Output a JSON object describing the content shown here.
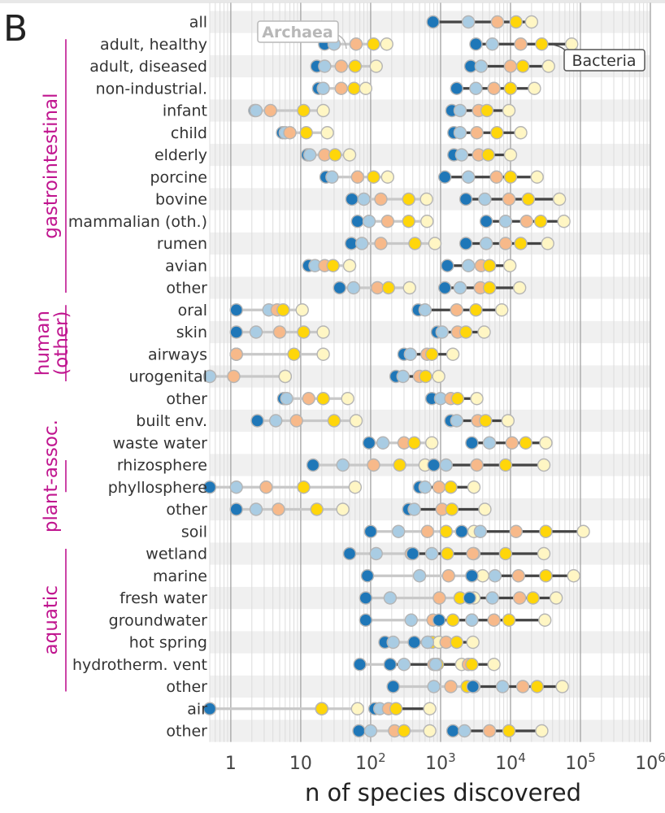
{
  "chart_data": {
    "type": "dot-range",
    "panel_letter": "B",
    "xlabel": "n of species discovered",
    "xscale": "log",
    "xlim": [
      0.5,
      1000000
    ],
    "xticks": [
      {
        "value": 1,
        "base": "1",
        "exp": ""
      },
      {
        "value": 10,
        "base": "10",
        "exp": ""
      },
      {
        "value": 100,
        "base": "10",
        "exp": "2"
      },
      {
        "value": 1000,
        "base": "10",
        "exp": "3"
      },
      {
        "value": 10000,
        "base": "10",
        "exp": "4"
      },
      {
        "value": 100000,
        "base": "10",
        "exp": "5"
      },
      {
        "value": 1000000,
        "base": "10",
        "exp": "6"
      }
    ],
    "annotations": {
      "archaea": "Archaea",
      "bacteria": "Bacteria"
    },
    "point_colors": [
      "#1f77b8",
      "#a9cce3",
      "#f7b98a",
      "#ffd60a",
      "#fff6c4"
    ],
    "series_colors": {
      "Archaea": "#c8c8c8",
      "Bacteria": "#444444"
    },
    "groups": [
      {
        "label": "gastrointestinal",
        "first_row": 1,
        "last_row": 12
      },
      {
        "label": "human (other)",
        "first_row": 13,
        "last_row": 16
      },
      {
        "label": "plant-assoc.",
        "first_row": 20,
        "last_row": 21
      },
      {
        "label": "aquatic",
        "first_row": 24,
        "last_row": 30
      }
    ],
    "rows": [
      {
        "label": "all",
        "archaea": [],
        "bacteria": [
          780,
          2500,
          6500,
          12000,
          20000
        ]
      },
      {
        "label": "adult, healthy",
        "archaea": [
          22,
          30,
          62,
          110,
          170
        ],
        "bacteria": [
          3200,
          5500,
          14000,
          28000,
          75000
        ]
      },
      {
        "label": "adult, diseased",
        "archaea": [
          17,
          22,
          38,
          60,
          120
        ],
        "bacteria": [
          2700,
          3800,
          10000,
          15000,
          35000
        ]
      },
      {
        "label": "non-industrial.",
        "archaea": [
          18,
          21,
          38,
          58,
          85
        ],
        "bacteria": [
          1700,
          3200,
          5800,
          10000,
          22000
        ]
      },
      {
        "label": "infant",
        "archaea": [
          2.2,
          2.3,
          3.7,
          11,
          21
        ],
        "bacteria": [
          1450,
          1900,
          3500,
          4600,
          9500
        ]
      },
      {
        "label": "child",
        "archaea": [
          5.5,
          6,
          7,
          12,
          24
        ],
        "bacteria": [
          1550,
          1900,
          3300,
          6400,
          14000
        ]
      },
      {
        "label": "elderly",
        "archaea": [
          12.5,
          13.5,
          22,
          31,
          50
        ],
        "bacteria": [
          1550,
          2000,
          3500,
          4800,
          10000
        ]
      },
      {
        "label": "porcine",
        "archaea": [
          23,
          28,
          65,
          110,
          175
        ],
        "bacteria": [
          1150,
          2500,
          6300,
          10000,
          24000
        ]
      },
      {
        "label": "bovine",
        "archaea": [
          54,
          80,
          140,
          350,
          630
        ],
        "bacteria": [
          2300,
          4300,
          9500,
          18000,
          50000
        ]
      },
      {
        "label": "mammalian (oth.)",
        "archaea": [
          65,
          95,
          175,
          350,
          640
        ],
        "bacteria": [
          4500,
          8500,
          17000,
          27000,
          58000
        ]
      },
      {
        "label": "rumen",
        "archaea": [
          53,
          75,
          140,
          430,
          830
        ],
        "bacteria": [
          2300,
          4500,
          8500,
          14000,
          34000
        ]
      },
      {
        "label": "avian",
        "archaea": [
          13,
          16,
          22,
          29,
          50
        ],
        "bacteria": [
          1250,
          2500,
          3800,
          5000,
          9800
        ]
      },
      {
        "label": "other",
        "archaea": [
          36,
          57,
          125,
          180,
          360
        ],
        "bacteria": [
          1150,
          1900,
          3700,
          5000,
          13500
        ]
      },
      {
        "label": "oral",
        "archaea": [
          1.2,
          3.5,
          4.6,
          5.6,
          10.5
        ],
        "bacteria": [
          480,
          600,
          1700,
          3200,
          7500
        ]
      },
      {
        "label": "skin",
        "archaea": [
          1.2,
          2.3,
          5,
          11,
          21
        ],
        "bacteria": [
          900,
          1050,
          1750,
          2300,
          4200
        ]
      },
      {
        "label": "airways",
        "archaea": [
          1.2,
          1.2,
          1.2,
          8,
          21
        ],
        "bacteria": [
          300,
          370,
          640,
          750,
          1500
        ]
      },
      {
        "label": "urogenital",
        "archaea": [
          0.5,
          0.5,
          1.1,
          6,
          6
        ],
        "bacteria": [
          230,
          290,
          500,
          610,
          940
        ]
      },
      {
        "label": "other",
        "archaea": [
          5.7,
          6.3,
          13,
          21,
          47
        ],
        "bacteria": [
          750,
          1000,
          1400,
          1750,
          3300
        ]
      },
      {
        "label": "built env.",
        "archaea": [
          2.4,
          4.4,
          8.7,
          30,
          62
        ],
        "bacteria": [
          1400,
          1700,
          3400,
          4400,
          9200
        ]
      },
      {
        "label": "waste water",
        "archaea": [
          95,
          150,
          300,
          420,
          750
        ],
        "bacteria": [
          2800,
          5000,
          10500,
          16500,
          32000
        ]
      },
      {
        "label": "rhizosphere",
        "archaea": [
          15,
          40,
          110,
          260,
          600
        ],
        "bacteria": [
          800,
          1200,
          3300,
          8500,
          30000
        ]
      },
      {
        "label": "phyllosphere",
        "archaea": [
          0.5,
          1.2,
          3.2,
          11,
          60
        ],
        "bacteria": [
          500,
          600,
          950,
          1400,
          3000
        ]
      },
      {
        "label": "other",
        "archaea": [
          1.2,
          2.3,
          4.8,
          17,
          40
        ],
        "bacteria": [
          350,
          420,
          1050,
          1450,
          4300
        ]
      },
      {
        "label": "soil",
        "archaea": [
          100,
          250,
          650,
          1200,
          3000
        ],
        "bacteria": [
          2000,
          3700,
          12000,
          32000,
          110000
        ]
      },
      {
        "label": "wetland",
        "archaea": [
          50,
          120,
          380,
          1250,
          3000
        ],
        "bacteria": [
          400,
          750,
          2900,
          8500,
          30000
        ]
      },
      {
        "label": "marine",
        "archaea": [
          90,
          500,
          1300,
          2800,
          4000
        ],
        "bacteria": [
          2800,
          6000,
          13000,
          32000,
          80000
        ]
      },
      {
        "label": "fresh water",
        "archaea": [
          85,
          190,
          960,
          1900,
          3000
        ],
        "bacteria": [
          2600,
          5500,
          13500,
          21000,
          45000
        ]
      },
      {
        "label": "groundwater",
        "archaea": [
          85,
          380,
          780,
          1500,
          2800
        ],
        "bacteria": [
          950,
          2800,
          5800,
          9500,
          31000
        ]
      },
      {
        "label": "hot spring",
        "archaea": [
          160,
          210,
          660,
          760,
          950
        ],
        "bacteria": [
          420,
          650,
          1200,
          1700,
          2900
        ]
      },
      {
        "label": "hydrotherm. vent",
        "archaea": [
          70,
          300,
          800,
          900,
          2000
        ],
        "bacteria": [
          190,
          850,
          2500,
          2800,
          5800
        ]
      },
      {
        "label": "other",
        "archaea": [
          210,
          800,
          1400,
          2400,
          3000
        ],
        "bacteria": [
          2900,
          7700,
          15000,
          24000,
          55000
        ]
      },
      {
        "label": "air",
        "archaea": [
          0.5,
          20,
          20,
          20,
          65
        ],
        "bacteria": [
          115,
          135,
          180,
          230,
          700
        ]
      },
      {
        "label": "other",
        "archaea": [
          68,
          100,
          220,
          300,
          700
        ],
        "bacteria": [
          1500,
          2200,
          5000,
          9500,
          28000
        ]
      }
    ]
  }
}
